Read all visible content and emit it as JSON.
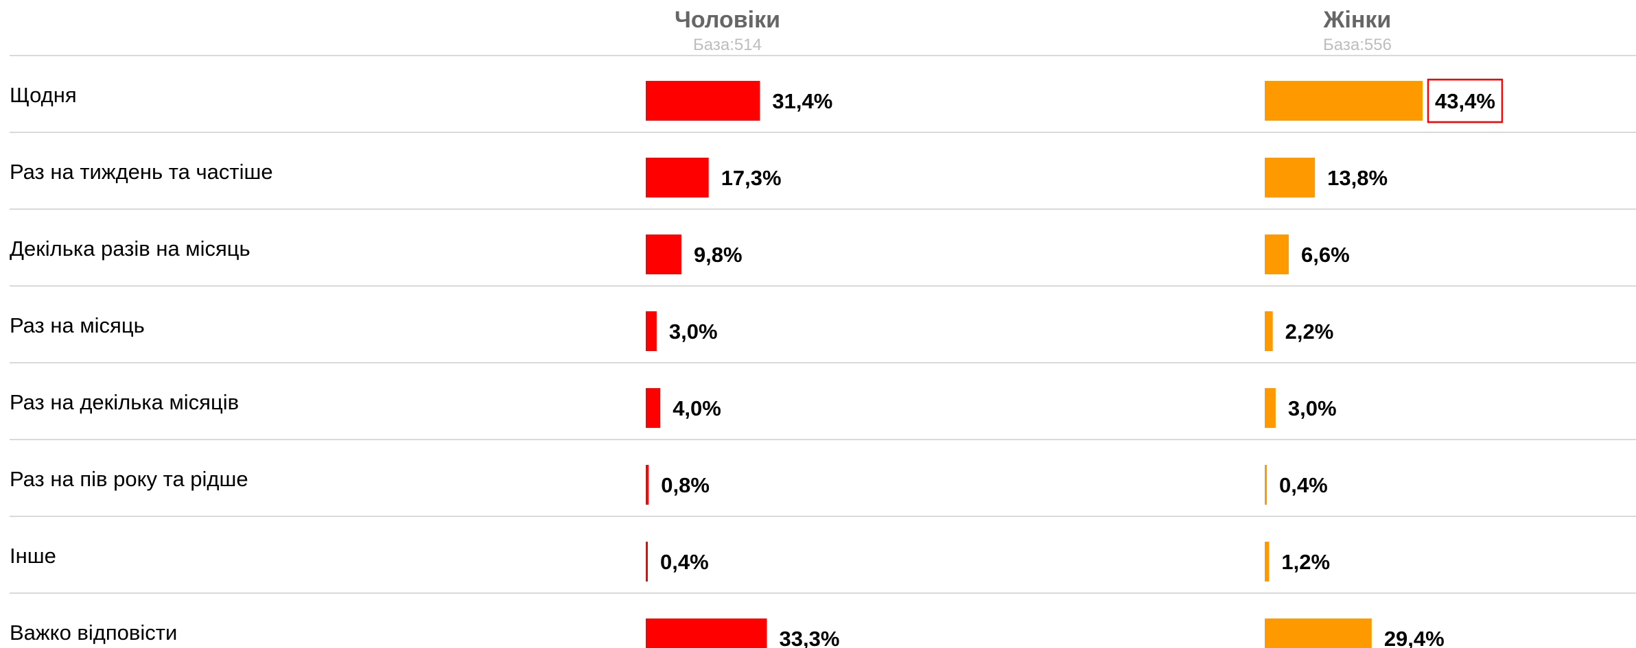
{
  "chart_data": {
    "type": "bar",
    "orientation": "horizontal",
    "categories": [
      "Щодня",
      "Раз на тиждень та частіше",
      "Декілька разів на місяць",
      "Раз на місяць",
      "Раз на декілька місяців",
      "Раз на пів року та рідше",
      "Інше",
      "Важко відповісти"
    ],
    "series": [
      {
        "name": "Чоловіки",
        "base": "База:514",
        "color": "#ff0000",
        "values": [
          31.4,
          17.3,
          9.8,
          3.0,
          4.0,
          0.8,
          0.4,
          33.3
        ],
        "labels": [
          "31,4%",
          "17,3%",
          "9,8%",
          "3,0%",
          "4,0%",
          "0,8%",
          "0,4%",
          "33,3%"
        ]
      },
      {
        "name": "Жінки",
        "base": "База:556",
        "color": "#ff9900",
        "values": [
          43.4,
          13.8,
          6.6,
          2.2,
          3.0,
          0.4,
          1.2,
          29.4
        ],
        "labels": [
          "43,4%",
          "13,8%",
          "6,6%",
          "2,2%",
          "3,0%",
          "0,4%",
          "1,2%",
          "29,4%"
        ]
      }
    ],
    "highlight": {
      "series": 1,
      "category": 0,
      "color": "#ff0000"
    },
    "grid_color": "#d9d9d9"
  }
}
